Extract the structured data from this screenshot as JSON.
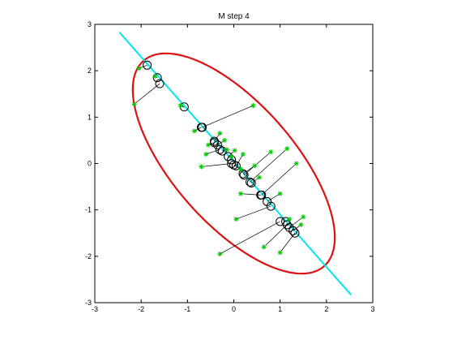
{
  "chart_data": {
    "type": "scatter",
    "title": "M step 4",
    "xlabel": "",
    "ylabel": "",
    "xlim": [
      -3,
      3
    ],
    "ylim": [
      -3,
      3
    ],
    "xticks": [
      -3,
      -2,
      -1,
      0,
      1,
      2,
      3
    ],
    "yticks": [
      -3,
      -2,
      -1,
      0,
      1,
      2,
      3
    ],
    "xtick_labels": [
      "-3",
      "-2",
      "-1",
      "0",
      "1",
      "2",
      "3"
    ],
    "ytick_labels": [
      "-3",
      "-2",
      "-1",
      "0",
      "1",
      "2",
      "3"
    ],
    "grid": false,
    "legend": "none",
    "colors": {
      "data_points": "#00cc00",
      "projections": "#000000",
      "principal_line": "#00e5ee",
      "ellipse": "#dd1111",
      "axes": "#000000"
    },
    "principal_line": {
      "x": [
        -2.47,
        2.53
      ],
      "y": [
        2.83,
        -2.83
      ]
    },
    "ellipse": {
      "center": [
        0,
        0
      ],
      "semi_major": 2.95,
      "semi_minor": 1.3,
      "angle_deg": -48.6
    },
    "points": [
      {
        "x": -2.05,
        "y": 2.05,
        "px": -1.87,
        "py": 2.12
      },
      {
        "x": -2.15,
        "y": 1.28,
        "px": -1.6,
        "py": 1.72
      },
      {
        "x": -1.15,
        "y": 1.25,
        "px": -1.07,
        "py": 1.22
      },
      {
        "x": -1.7,
        "y": 1.88,
        "px": -1.65,
        "py": 1.85
      },
      {
        "x": 0.42,
        "y": 1.25,
        "px": -0.68,
        "py": 0.78
      },
      {
        "x": -0.85,
        "y": 0.7,
        "px": -0.7,
        "py": 0.78
      },
      {
        "x": -0.3,
        "y": 0.65,
        "px": -0.42,
        "py": 0.48
      },
      {
        "x": -0.55,
        "y": 0.4,
        "px": -0.42,
        "py": 0.45
      },
      {
        "x": -0.2,
        "y": 0.5,
        "px": -0.35,
        "py": 0.4
      },
      {
        "x": -0.15,
        "y": 0.3,
        "px": -0.25,
        "py": 0.27
      },
      {
        "x": -0.6,
        "y": 0.2,
        "px": -0.3,
        "py": 0.3
      },
      {
        "x": 0.02,
        "y": 0.28,
        "px": -0.12,
        "py": 0.15
      },
      {
        "x": -0.05,
        "y": 0.15,
        "px": -0.05,
        "py": 0.08
      },
      {
        "x": 0.2,
        "y": 0.2,
        "px": 0.05,
        "py": -0.05
      },
      {
        "x": -0.7,
        "y": -0.07,
        "px": -0.05,
        "py": 0.0
      },
      {
        "x": 0.15,
        "y": -0.12,
        "px": 0.0,
        "py": -0.03
      },
      {
        "x": 0.8,
        "y": 0.25,
        "px": 0.22,
        "py": -0.25
      },
      {
        "x": 0.45,
        "y": -0.05,
        "px": 0.2,
        "py": -0.22
      },
      {
        "x": 1.15,
        "y": 0.32,
        "px": 0.35,
        "py": -0.4
      },
      {
        "x": 0.55,
        "y": -0.3,
        "px": 0.38,
        "py": -0.42
      },
      {
        "x": 1.35,
        "y": 0.0,
        "px": 0.6,
        "py": -0.68
      },
      {
        "x": 0.15,
        "y": -0.65,
        "px": 0.58,
        "py": -0.68
      },
      {
        "x": 1.0,
        "y": -0.65,
        "px": 0.72,
        "py": -0.82
      },
      {
        "x": 0.05,
        "y": -1.2,
        "px": 0.8,
        "py": -0.92
      },
      {
        "x": 1.2,
        "y": -1.2,
        "px": 1.12,
        "py": -1.25
      },
      {
        "x": 1.5,
        "y": -1.15,
        "px": 1.2,
        "py": -1.38
      },
      {
        "x": 1.45,
        "y": -1.32,
        "px": 1.28,
        "py": -1.45
      },
      {
        "x": 0.65,
        "y": -1.8,
        "px": 1.15,
        "py": -1.32
      },
      {
        "x": 1.0,
        "y": -1.92,
        "px": 1.32,
        "py": -1.5
      },
      {
        "x": -0.3,
        "y": -1.95,
        "px": 1.0,
        "py": -1.25
      }
    ]
  }
}
